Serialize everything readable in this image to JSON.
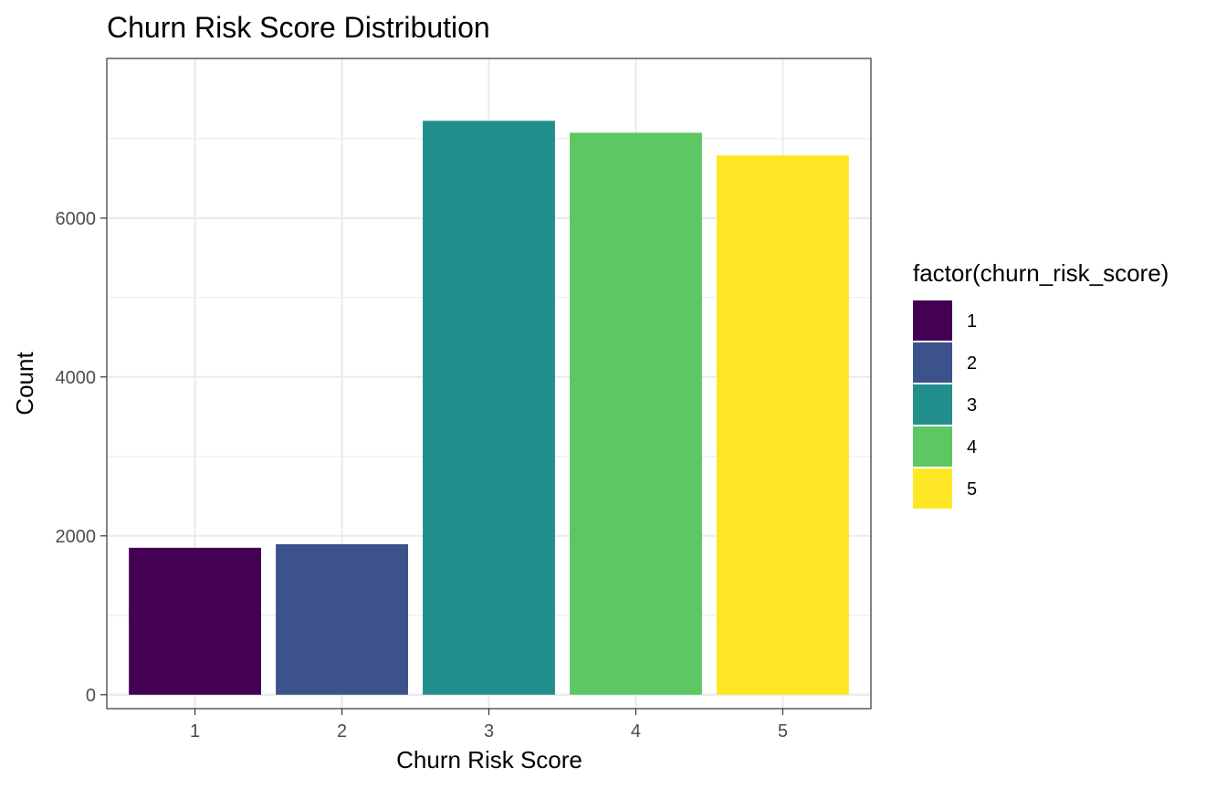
{
  "chart_data": {
    "type": "bar",
    "title": "Churn Risk Score Distribution",
    "xlabel": "Churn Risk Score",
    "ylabel": "Count",
    "categories": [
      "1",
      "2",
      "3",
      "4",
      "5"
    ],
    "values": [
      1850,
      1895,
      7225,
      7075,
      6790
    ],
    "colors": [
      "#440154",
      "#3B528B",
      "#21908C",
      "#5DC863",
      "#FDE725"
    ],
    "ylim": [
      -175,
      8010
    ],
    "yticks": [
      0,
      2000,
      4000,
      6000
    ],
    "yticks_labels": [
      "0",
      "2000",
      "4000",
      "6000"
    ],
    "grid": true,
    "legend": {
      "title": "factor(churn_risk_score)",
      "position": "right",
      "entries": [
        "1",
        "2",
        "3",
        "4",
        "5"
      ]
    }
  }
}
